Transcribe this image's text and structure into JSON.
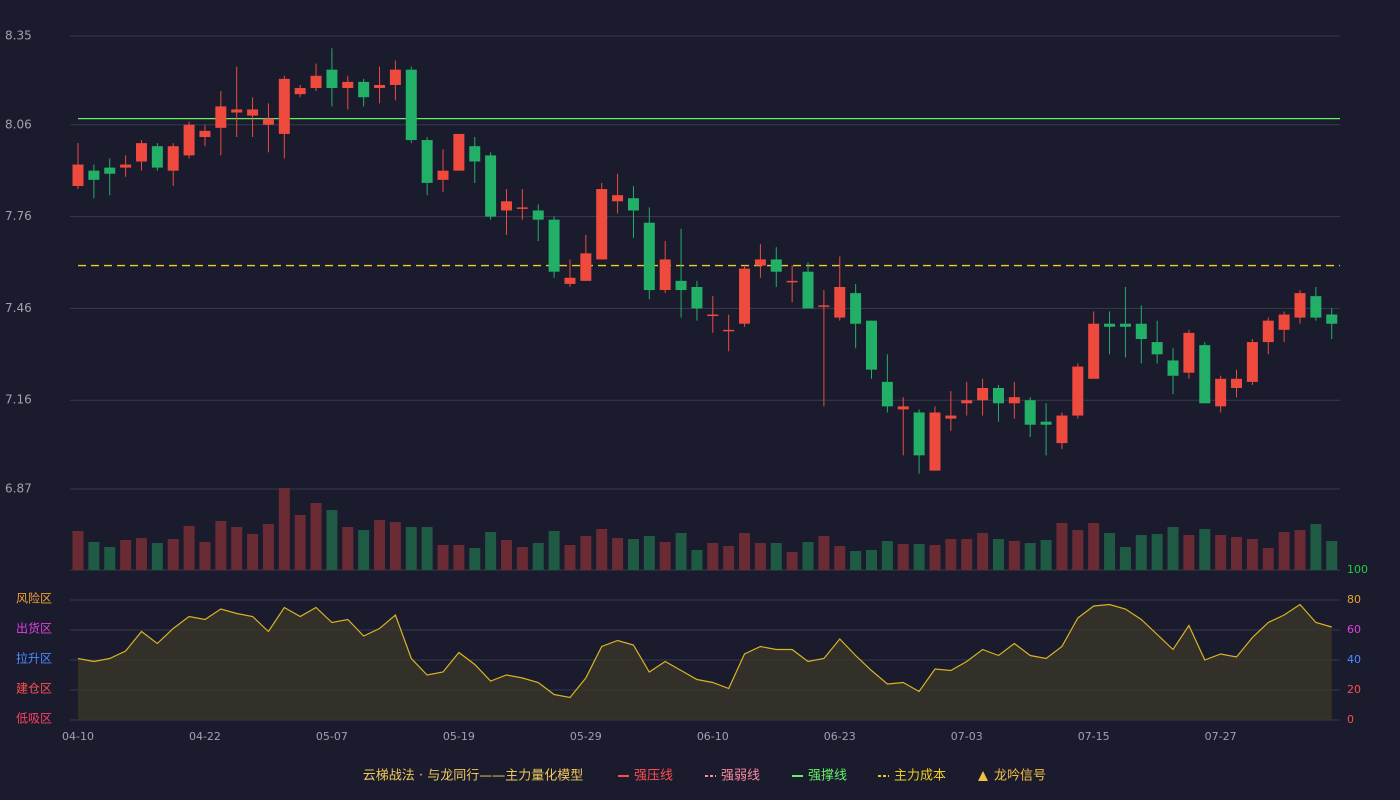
{
  "chart_data": {
    "type": "candlestick",
    "categories": [
      "04-10",
      null,
      null,
      null,
      null,
      null,
      null,
      null,
      "04-22",
      null,
      null,
      null,
      null,
      null,
      null,
      null,
      "05-07",
      null,
      null,
      null,
      null,
      null,
      null,
      null,
      "05-19",
      null,
      null,
      null,
      null,
      null,
      null,
      null,
      "05-29",
      null,
      null,
      null,
      null,
      null,
      null,
      null,
      "06-10",
      null,
      null,
      null,
      null,
      null,
      null,
      null,
      "06-23",
      null,
      null,
      null,
      null,
      null,
      null,
      null,
      "07-03",
      null,
      null,
      null,
      null,
      null,
      null,
      null,
      "07-15",
      null,
      null,
      null,
      null,
      null,
      null,
      null,
      "07-27",
      null,
      null,
      null,
      null,
      null,
      null,
      null
    ],
    "open": [
      7.86,
      7.91,
      7.92,
      7.92,
      7.94,
      7.99,
      7.91,
      7.96,
      8.02,
      8.05,
      8.1,
      8.09,
      8.06,
      8.03,
      8.16,
      8.18,
      8.24,
      8.18,
      8.2,
      8.18,
      8.19,
      8.24,
      8.01,
      7.88,
      7.91,
      7.99,
      7.96,
      7.78,
      7.79,
      7.78,
      7.75,
      7.54,
      7.55,
      7.62,
      7.81,
      7.82,
      7.74,
      7.52,
      7.55,
      7.53,
      7.44,
      7.39,
      7.41,
      7.6,
      7.62,
      7.55,
      7.58,
      7.47,
      7.43,
      7.51,
      7.42,
      7.22,
      7.13,
      7.12,
      6.93,
      7.1,
      7.15,
      7.16,
      7.2,
      7.15,
      7.16,
      7.09,
      7.02,
      7.11,
      7.23,
      7.41,
      7.41,
      7.41,
      7.35,
      7.29,
      7.25,
      7.34,
      7.14,
      7.2,
      7.22,
      7.35,
      7.39,
      7.43,
      7.5,
      7.44
    ],
    "high": [
      8.0,
      7.93,
      7.95,
      7.96,
      8.01,
      8.0,
      8.0,
      8.07,
      8.06,
      8.17,
      8.25,
      8.15,
      8.13,
      8.22,
      8.19,
      8.26,
      8.31,
      8.22,
      8.21,
      8.25,
      8.27,
      8.25,
      8.02,
      7.98,
      8.03,
      8.02,
      7.97,
      7.85,
      7.85,
      7.8,
      7.76,
      7.62,
      7.7,
      7.87,
      7.9,
      7.86,
      7.79,
      7.68,
      7.72,
      7.55,
      7.5,
      7.44,
      7.6,
      7.67,
      7.66,
      7.6,
      7.61,
      7.52,
      7.63,
      7.54,
      7.42,
      7.31,
      7.17,
      7.13,
      7.14,
      7.19,
      7.22,
      7.23,
      7.21,
      7.22,
      7.17,
      7.15,
      7.12,
      7.28,
      7.45,
      7.45,
      7.53,
      7.47,
      7.42,
      7.33,
      7.39,
      7.35,
      7.24,
      7.26,
      7.36,
      7.43,
      7.45,
      7.52,
      7.53,
      7.46
    ],
    "low": [
      7.85,
      7.82,
      7.83,
      7.89,
      7.91,
      7.91,
      7.86,
      7.95,
      7.99,
      7.96,
      8.02,
      8.02,
      7.97,
      7.95,
      8.15,
      8.17,
      8.12,
      8.11,
      8.12,
      8.13,
      8.14,
      8.0,
      7.83,
      7.84,
      7.91,
      7.87,
      7.75,
      7.7,
      7.75,
      7.68,
      7.56,
      7.53,
      7.55,
      7.62,
      7.77,
      7.69,
      7.49,
      7.51,
      7.43,
      7.42,
      7.38,
      7.32,
      7.4,
      7.56,
      7.53,
      7.48,
      7.46,
      7.14,
      7.42,
      7.33,
      7.23,
      7.12,
      6.98,
      6.92,
      6.93,
      7.06,
      7.11,
      7.11,
      7.09,
      7.1,
      7.04,
      6.98,
      7.0,
      7.1,
      7.23,
      7.31,
      7.3,
      7.28,
      7.28,
      7.18,
      7.23,
      7.15,
      7.12,
      7.17,
      7.21,
      7.31,
      7.35,
      7.41,
      7.42,
      7.36
    ],
    "close": [
      7.93,
      7.88,
      7.9,
      7.93,
      8.0,
      7.92,
      7.99,
      8.06,
      8.04,
      8.12,
      8.11,
      8.11,
      8.08,
      8.21,
      8.18,
      8.22,
      8.18,
      8.2,
      8.15,
      8.19,
      8.24,
      8.01,
      7.87,
      7.91,
      8.03,
      7.94,
      7.76,
      7.81,
      7.79,
      7.75,
      7.58,
      7.56,
      7.64,
      7.85,
      7.83,
      7.78,
      7.52,
      7.62,
      7.52,
      7.46,
      7.44,
      7.39,
      7.59,
      7.62,
      7.58,
      7.55,
      7.46,
      7.47,
      7.53,
      7.41,
      7.26,
      7.14,
      7.14,
      6.98,
      7.12,
      7.11,
      7.16,
      7.2,
      7.15,
      7.17,
      7.08,
      7.08,
      7.11,
      7.27,
      7.41,
      7.4,
      7.4,
      7.36,
      7.31,
      7.24,
      7.38,
      7.15,
      7.23,
      7.23,
      7.35,
      7.42,
      7.44,
      7.51,
      7.43,
      7.41
    ],
    "up_color": "#ee4a3e",
    "down_color": "#22b068",
    "ylim": [
      6.87,
      8.35
    ],
    "yticks": [
      6.87,
      7.16,
      7.46,
      7.76,
      8.06,
      8.35
    ],
    "grid": true,
    "volume": {
      "values": [
        39,
        28,
        23,
        30,
        32,
        27,
        31,
        44,
        28,
        49,
        43,
        36,
        46,
        82,
        55,
        67,
        60,
        43,
        40,
        50,
        48,
        43,
        43,
        25,
        25,
        22,
        38,
        30,
        23,
        27,
        39,
        25,
        34,
        41,
        32,
        31,
        34,
        28,
        37,
        20,
        27,
        24,
        37,
        27,
        27,
        18,
        28,
        34,
        24,
        19,
        20,
        29,
        26,
        26,
        25,
        31,
        31,
        37,
        31,
        29,
        27,
        30,
        47,
        40,
        47,
        37,
        23,
        35,
        36,
        43,
        35,
        41,
        35,
        33,
        31,
        22,
        38,
        40,
        46,
        29
      ],
      "ylim": [
        0,
        85
      ],
      "up_color": "#6a2b34",
      "down_color": "#1f5a44"
    },
    "oscillator": {
      "values": [
        41,
        39,
        41,
        46,
        59,
        51,
        61,
        69,
        67,
        74,
        71,
        69,
        59,
        75,
        69,
        75,
        65,
        67,
        56,
        61,
        70,
        41,
        30,
        32,
        45,
        37,
        26,
        30,
        28,
        25,
        17,
        15,
        28,
        49,
        53,
        50,
        32,
        39,
        33,
        27,
        25,
        21,
        44,
        49,
        47,
        47,
        39,
        41,
        54,
        43,
        33,
        24,
        25,
        19,
        34,
        33,
        39,
        47,
        43,
        51,
        43,
        41,
        49,
        68,
        76,
        77,
        74,
        67,
        57,
        47,
        63,
        40,
        44,
        42,
        55,
        65,
        70,
        77,
        65,
        62
      ],
      "ylim": [
        0,
        100
      ],
      "yticks": [
        0,
        20,
        40,
        60,
        80,
        100
      ],
      "tick_colors": [
        "#ff4d4d",
        "#ff4d4d",
        "#4a8cff",
        "#e040e0",
        "#f0a030",
        "#22cc44"
      ],
      "zones": [
        {
          "label": "风险区",
          "value": 80,
          "color": "#f0a030"
        },
        {
          "label": "出货区",
          "value": 60,
          "color": "#e040e0"
        },
        {
          "label": "拉升区",
          "value": 40,
          "color": "#4a8cff"
        },
        {
          "label": "建仓区",
          "value": 20,
          "color": "#ff5050"
        },
        {
          "label": "低吸区",
          "value": 0,
          "color": "#ff4060"
        }
      ],
      "line_color": "#d8b422",
      "fill": "#3a3428"
    },
    "legend": {
      "title": "云梯战法 · 与龙同行——主力量化模型",
      "items": [
        {
          "name": "强压线",
          "color": "#ff4d4d",
          "style": "solid"
        },
        {
          "name": "强弱线",
          "color": "#ff8aa0",
          "style": "dashed"
        },
        {
          "name": "强撑线",
          "color": "#66ee66",
          "style": "solid",
          "value": 8.08
        },
        {
          "name": "主力成本",
          "color": "#f0cc20",
          "style": "dashed",
          "value": 7.6
        },
        {
          "name": "龙吟信号",
          "color": "#f0c040",
          "style": "triangle"
        }
      ]
    }
  }
}
